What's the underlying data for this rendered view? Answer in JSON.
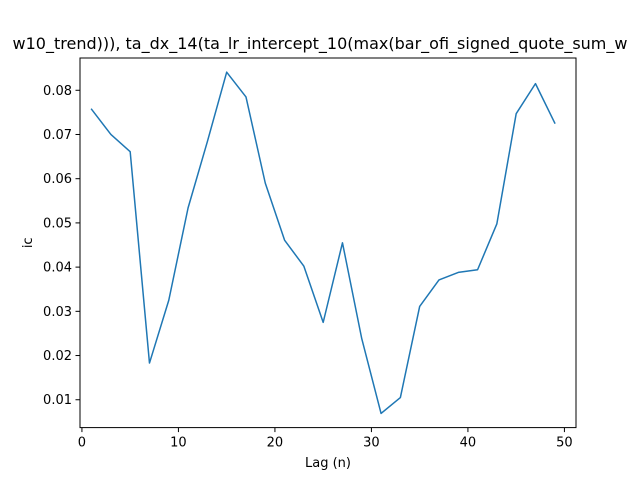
{
  "chart_data": {
    "type": "line",
    "title": "w10_trend))), ta_dx_14(ta_lr_intercept_10(max(bar_ofi_signed_quote_sum_w",
    "xlabel": "Lag (n)",
    "ylabel": "ic",
    "xlim": [
      -0.2,
      51.2
    ],
    "ylim": [
      0.0037,
      0.0873
    ],
    "xticks": [
      0,
      10,
      20,
      30,
      40,
      50
    ],
    "yticks": [
      0.01,
      0.02,
      0.03,
      0.04,
      0.05,
      0.06,
      0.07,
      0.08
    ],
    "xtick_labels": [
      "0",
      "10",
      "20",
      "30",
      "40",
      "50"
    ],
    "ytick_labels": [
      "0.01",
      "0.02",
      "0.03",
      "0.04",
      "0.05",
      "0.06",
      "0.07",
      "0.08"
    ],
    "grid": false,
    "line_color": "#1f77b4",
    "series": [
      {
        "x": [
          1,
          3,
          5,
          7,
          9,
          11,
          13,
          15,
          17,
          19,
          21,
          23,
          25,
          27,
          29,
          31,
          33,
          35,
          37,
          39,
          41,
          43,
          45,
          47,
          49
        ],
        "values": [
          0.0757,
          0.07,
          0.0661,
          0.0183,
          0.0325,
          0.0534,
          0.0684,
          0.0841,
          0.0785,
          0.059,
          0.0461,
          0.0402,
          0.0275,
          0.0455,
          0.0238,
          0.0069,
          0.0105,
          0.0311,
          0.0371,
          0.0388,
          0.0394,
          0.0498,
          0.0747,
          0.0815,
          0.0726
        ]
      }
    ]
  }
}
